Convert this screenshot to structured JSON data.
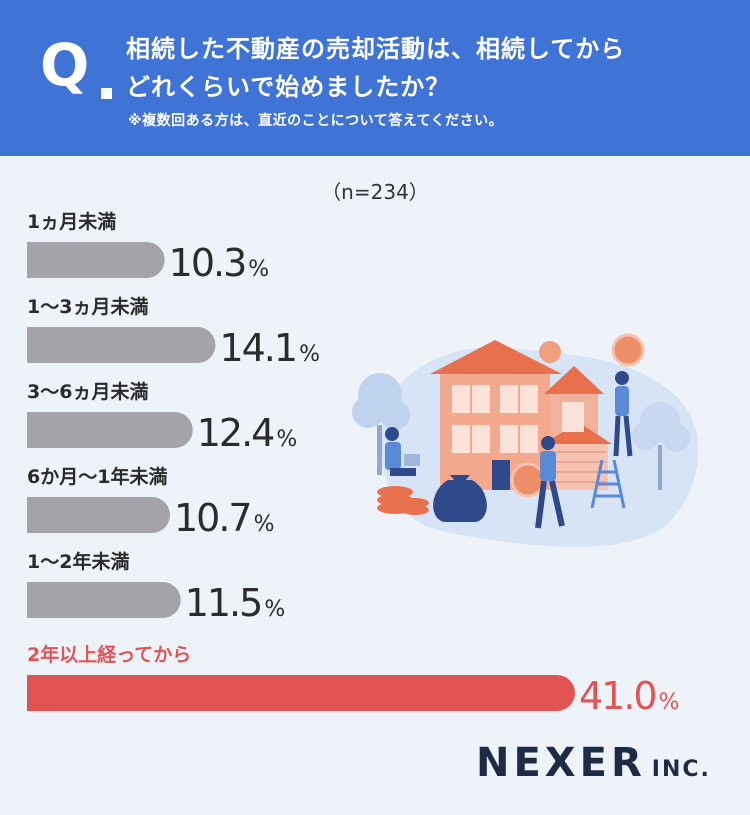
{
  "header": {
    "q_mark": "Q",
    "question_line1": "相続した不動産の売却活動は、相続してから",
    "question_line2": "どれくらいで始めましたか？",
    "note": "※複数回ある方は、直近のことについて答えてください。"
  },
  "sample_size": "（n=234）",
  "brand": {
    "main": "NEXER",
    "sub": "INC."
  },
  "colors": {
    "bar_gray": "#a3a3a8",
    "bar_red": "#e05454",
    "header_blue": "#3f74d6"
  },
  "chart_data": {
    "type": "bar",
    "orientation": "horizontal",
    "unit": "%",
    "categories": [
      "1ヵ月未満",
      "1〜3ヵ月未満",
      "3〜6ヵ月未満",
      "6か月〜1年未満",
      "1〜2年未満",
      "2年以上経ってから"
    ],
    "values": [
      10.3,
      14.1,
      12.4,
      10.7,
      11.5,
      41.0
    ],
    "highlight_index": 5,
    "value_labels": [
      "10.3",
      "14.1",
      "12.4",
      "10.7",
      "11.5",
      "41.0"
    ],
    "xlim": [
      0,
      41.0
    ]
  }
}
